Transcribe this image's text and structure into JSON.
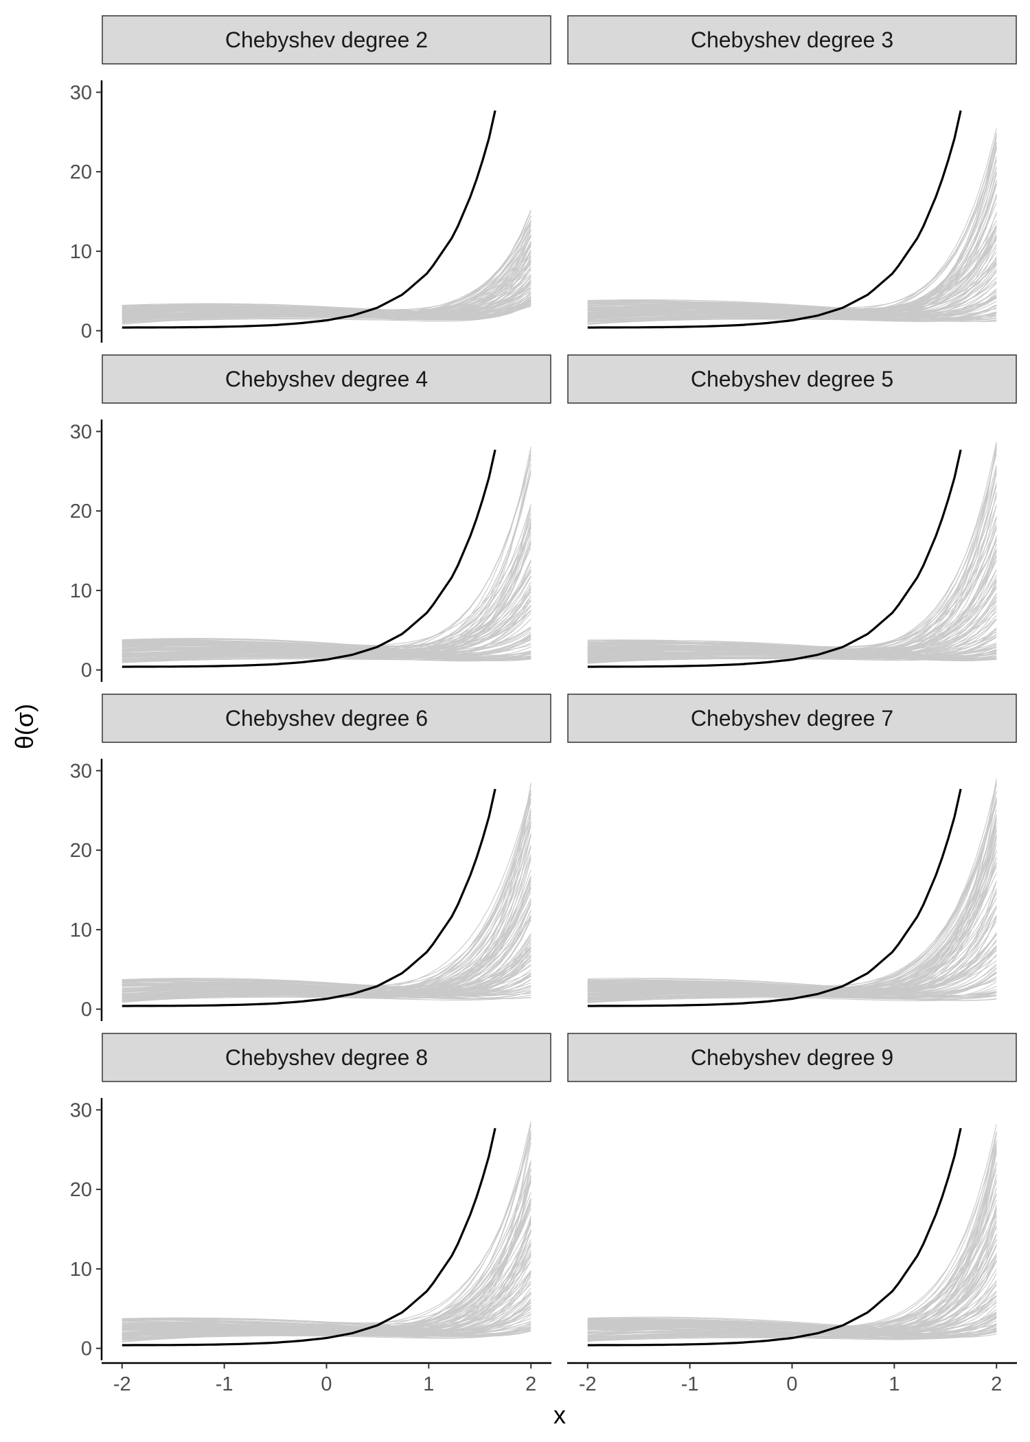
{
  "chart_data": {
    "type": "line",
    "layout": "facet-grid",
    "xlabel": "x",
    "ylabel": "θ(σ)",
    "xlim": [
      -2,
      2
    ],
    "ylim": [
      0,
      30
    ],
    "x_ticks": [
      -2,
      -1,
      0,
      1,
      2
    ],
    "y_ticks": [
      0,
      10,
      20,
      30
    ],
    "grid": false,
    "line_colors": {
      "truth": "#000000",
      "samples": "#c4c4c4"
    },
    "strip_color": "#d9d9d9",
    "truth_curve": {
      "x": [
        -2.0,
        -1.75,
        -1.5,
        -1.25,
        -1.0,
        -0.75,
        -0.5,
        -0.25,
        0.0,
        0.25,
        0.5,
        0.75,
        1.0,
        1.25,
        1.4,
        1.5,
        1.6,
        1.65
      ],
      "y": [
        0.4,
        0.41,
        0.42,
        0.45,
        0.5,
        0.58,
        0.72,
        0.95,
        1.3,
        1.9,
        2.9,
        4.6,
        7.4,
        12.1,
        16.6,
        20.2,
        24.7,
        27.7
      ]
    },
    "panels": [
      {
        "label": "Chebyshev degree 2",
        "sample_count": 100,
        "sample_max": [
          5,
          17
        ],
        "sample_min": [
          0.4,
          3.8
        ],
        "sample_mid": [
          1.3,
          2.6
        ]
      },
      {
        "label": "Chebyshev degree 3",
        "sample_count": 100,
        "sample_max": [
          6,
          26
        ],
        "sample_min": [
          0.5,
          2.0
        ],
        "sample_mid": [
          1.3,
          2.4
        ]
      },
      {
        "label": "Chebyshev degree 4",
        "sample_count": 100,
        "sample_max": [
          6,
          29
        ],
        "sample_min": [
          0.5,
          2.2
        ],
        "sample_mid": [
          1.3,
          2.5
        ]
      },
      {
        "label": "Chebyshev degree 5",
        "sample_count": 100,
        "sample_max": [
          6,
          29.5
        ],
        "sample_min": [
          0.5,
          2.0
        ],
        "sample_mid": [
          1.2,
          2.4
        ]
      },
      {
        "label": "Chebyshev degree 6",
        "sample_count": 100,
        "sample_max": [
          6,
          29.5
        ],
        "sample_min": [
          0.5,
          2.2
        ],
        "sample_mid": [
          1.4,
          2.6
        ]
      },
      {
        "label": "Chebyshev degree 7",
        "sample_count": 100,
        "sample_max": [
          6,
          30
        ],
        "sample_min": [
          0.5,
          2.0
        ],
        "sample_mid": [
          1.2,
          2.3
        ]
      },
      {
        "label": "Chebyshev degree 8",
        "sample_count": 100,
        "sample_max": [
          6,
          29.5
        ],
        "sample_min": [
          0.5,
          3.0
        ],
        "sample_mid": [
          1.4,
          2.6
        ]
      },
      {
        "label": "Chebyshev degree 9",
        "sample_count": 100,
        "sample_max": [
          6,
          29.5
        ],
        "sample_min": [
          0.5,
          2.6
        ],
        "sample_mid": [
          1.2,
          2.5
        ]
      }
    ]
  }
}
